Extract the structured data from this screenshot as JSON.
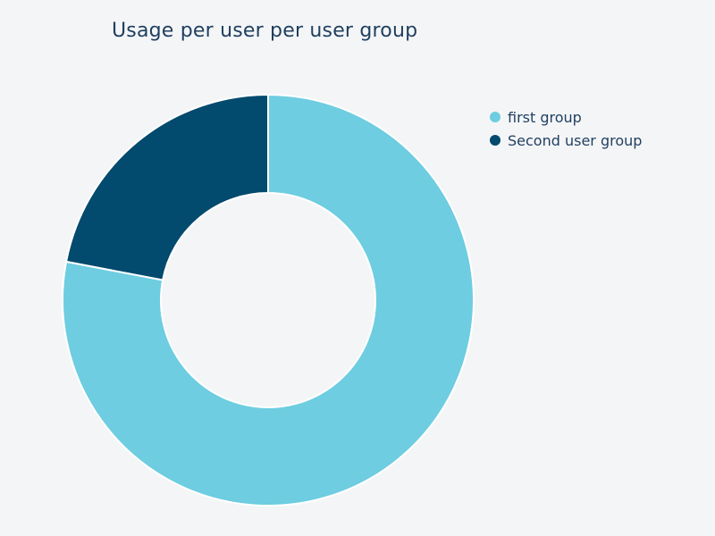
{
  "chart_data": {
    "type": "pie",
    "title": "Usage per user per user group",
    "categories": [
      "first group",
      "Second user group"
    ],
    "values": [
      78,
      22
    ],
    "colors": [
      "#6ecde0",
      "#024a6e"
    ],
    "legend_position": "right",
    "donut": true
  }
}
